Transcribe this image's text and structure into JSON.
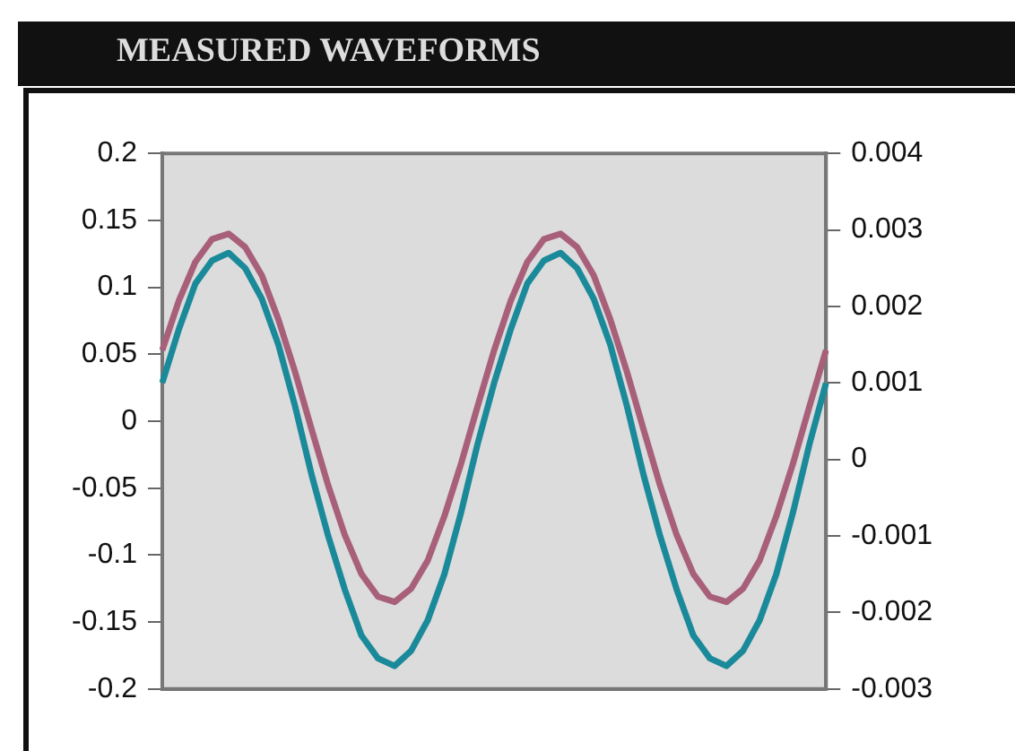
{
  "chart_data": {
    "type": "line",
    "title": "MEASURED WAVEFORMS",
    "categories": [
      null,
      null,
      null,
      null,
      null,
      null,
      null,
      null,
      null,
      null,
      null,
      null,
      null,
      null,
      null,
      null,
      null,
      null,
      null,
      null,
      null,
      null,
      null,
      null,
      null,
      null,
      null,
      null,
      null,
      null,
      null,
      null,
      null,
      null,
      null,
      null,
      null,
      null,
      null,
      null,
      null
    ],
    "series": [
      {
        "color": "#a8607a",
        "values": [
          0.053,
          0.09,
          0.119,
          0.136,
          0.14,
          0.13,
          0.109,
          0.076,
          0.037,
          -0.006,
          -0.048,
          -0.085,
          -0.114,
          -0.131,
          -0.135,
          -0.125,
          -0.104,
          -0.071,
          -0.032,
          0.011,
          0.053,
          0.09,
          0.119,
          0.136,
          0.14,
          0.13,
          0.109,
          0.076,
          0.037,
          -0.006,
          -0.048,
          -0.085,
          -0.114,
          -0.131,
          -0.135,
          -0.125,
          -0.104,
          -0.071,
          -0.032,
          0.011,
          0.053
        ]
      },
      {
        "color": "#1a8a9a",
        "axis": "y2",
        "values": [
          0.001,
          0.0017,
          0.0023,
          0.0026,
          0.0027,
          0.0025,
          0.0021,
          0.0015,
          0.0007,
          -0.0002,
          -0.001,
          -0.0017,
          -0.0023,
          -0.0026,
          -0.0027,
          -0.0025,
          -0.0021,
          -0.0015,
          -0.0007,
          0.0002,
          0.001,
          0.0017,
          0.0023,
          0.0026,
          0.0027,
          0.0025,
          0.0021,
          0.0015,
          0.0007,
          -0.0002,
          -0.001,
          -0.0017,
          -0.0023,
          -0.0026,
          -0.0027,
          -0.0025,
          -0.0021,
          -0.0015,
          -0.0007,
          0.0002,
          0.001
        ]
      }
    ],
    "ylim": [
      -0.2,
      0.2
    ],
    "yticks": [
      -0.2,
      -0.15,
      -0.1,
      -0.05,
      0,
      0.05,
      0.1,
      0.15,
      0.2
    ],
    "y2lim": [
      -0.003,
      0.004
    ],
    "y2ticks": [
      -0.003,
      -0.002,
      -0.001,
      0,
      0.001,
      0.002,
      0.003,
      0.004
    ],
    "grid": false,
    "legend": false,
    "marker": "none",
    "line_style": "solid"
  }
}
